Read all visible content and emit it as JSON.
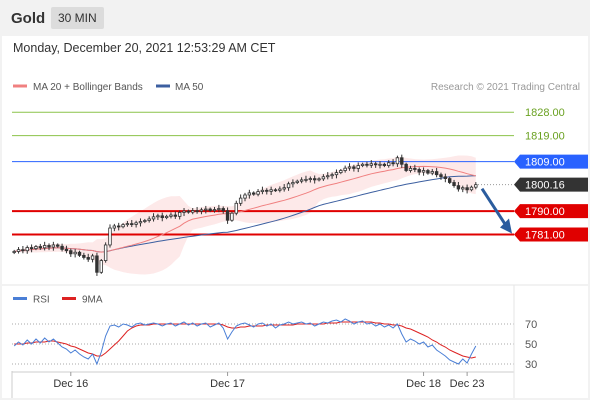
{
  "symbol": "Gold",
  "timeframe": "30 MIN",
  "datetime": "Monday, December 20, 2021 12:53:29 AM CET",
  "colors": {
    "candle_up": "#ffffff",
    "candle_down": "#333333",
    "ma20": "#f08080",
    "ma50": "#3c5fa0",
    "band_fill": "#fde3e3",
    "level_resistance": "#8bc34a",
    "level_pivot": "#2962ff",
    "level_support": "#e00000",
    "price_tag": "#333333",
    "rsi": "#4a7fd6",
    "rsi_ma": "#dd2222",
    "arrow": "#2b5c9e"
  },
  "chart_data": [
    {
      "type": "candlestick",
      "title": "Gold 30 MIN",
      "legend": {
        "position": "top-left",
        "items": [
          {
            "label": "MA 20 + Bollinger Bands",
            "color": "#f08080"
          },
          {
            "label": "MA 50",
            "color": "#3c5fa0"
          }
        ]
      },
      "credit": "Research © 2021 Trading Central",
      "ylim": [
        1762,
        1835
      ],
      "grid": false,
      "x_ticks": [
        "Dec 16",
        "Dec 17",
        "Dec 18",
        "Dec 23"
      ],
      "close": [
        1774.5,
        1775.2,
        1774.8,
        1776.0,
        1775.6,
        1776.4,
        1775.9,
        1776.8,
        1776.2,
        1777.0,
        1776.5,
        1775.3,
        1774.8,
        1773.6,
        1774.2,
        1773.0,
        1772.2,
        1771.5,
        1772.8,
        1766.5,
        1771.0,
        1777.0,
        1783.5,
        1784.3,
        1784.0,
        1784.8,
        1785.2,
        1784.9,
        1785.5,
        1786.0,
        1786.4,
        1787.0,
        1787.8,
        1788.2,
        1787.5,
        1788.0,
        1788.5,
        1788.0,
        1789.5,
        1790.0,
        1789.6,
        1790.2,
        1790.0,
        1790.5,
        1790.8,
        1790.2,
        1790.6,
        1791.0,
        1790.2,
        1786.5,
        1789.2,
        1793.0,
        1795.0,
        1796.2,
        1797.0,
        1796.5,
        1797.5,
        1798.0,
        1797.6,
        1798.2,
        1798.0,
        1798.5,
        1799.0,
        1800.5,
        1801.0,
        1801.5,
        1802.0,
        1802.2,
        1802.5,
        1802.0,
        1802.4,
        1803.2,
        1803.6,
        1804.0,
        1804.8,
        1805.6,
        1806.5,
        1807.0,
        1806.4,
        1807.5,
        1808.0,
        1807.6,
        1808.2,
        1807.8,
        1808.0,
        1807.5,
        1808.6,
        1808.2,
        1810.5,
        1808.0,
        1805.6,
        1806.4,
        1806.0,
        1805.0,
        1805.6,
        1804.6,
        1805.2,
        1804.0,
        1803.2,
        1802.5,
        1801.0,
        1799.8,
        1798.5,
        1799.0,
        1798.2,
        1799.2,
        1800.16
      ],
      "annotations": [
        {
          "label": "1828.00",
          "value": 1828.0,
          "color": "#8bc34a",
          "role": "resistance"
        },
        {
          "label": "1819.00",
          "value": 1819.0,
          "color": "#8bc34a",
          "role": "resistance"
        },
        {
          "label": "1809.00",
          "value": 1809.0,
          "color": "#2962ff",
          "role": "pivot"
        },
        {
          "label": "1800.16",
          "value": 1800.16,
          "color": "#333333",
          "role": "last-price"
        },
        {
          "label": "1790.00",
          "value": 1790.0,
          "color": "#e00000",
          "role": "support"
        },
        {
          "label": "1781.00",
          "value": 1781.0,
          "color": "#e00000",
          "role": "support"
        }
      ],
      "arrow": {
        "from": 1800.16,
        "to": 1781.0,
        "direction": "down"
      }
    },
    {
      "type": "line",
      "title": "RSI",
      "legend": {
        "position": "top-left",
        "items": [
          {
            "label": "RSI",
            "color": "#4a7fd6"
          },
          {
            "label": "9MA",
            "color": "#dd2222"
          }
        ]
      },
      "ylim": [
        22,
        78
      ],
      "levels": [
        70,
        50,
        30
      ],
      "level_labels": [
        "70",
        "50",
        "30"
      ],
      "series": [
        {
          "name": "RSI",
          "values": [
            48,
            52,
            49,
            54,
            50,
            55,
            51,
            56,
            52,
            55,
            51,
            47,
            45,
            41,
            44,
            40,
            37,
            35,
            40,
            30,
            42,
            58,
            68,
            69,
            67,
            70,
            69,
            67,
            70,
            71,
            69,
            70,
            71,
            70,
            68,
            70,
            71,
            68,
            70,
            72,
            69,
            71,
            68,
            70,
            71,
            67,
            69,
            71,
            66,
            55,
            62,
            68,
            70,
            71,
            69,
            67,
            70,
            71,
            68,
            70,
            66,
            69,
            70,
            72,
            70,
            71,
            72,
            70,
            71,
            68,
            70,
            72,
            71,
            73,
            74,
            72,
            75,
            73,
            70,
            72,
            73,
            70,
            71,
            68,
            70,
            67,
            69,
            66,
            70,
            60,
            52,
            55,
            53,
            50,
            52,
            47,
            49,
            44,
            41,
            38,
            34,
            32,
            30,
            35,
            31,
            40,
            48
          ]
        },
        {
          "name": "9MA",
          "values": [
            50,
            50,
            50,
            51,
            51,
            52,
            52,
            52,
            53,
            53,
            52,
            51,
            50,
            48,
            47,
            45,
            43,
            41,
            40,
            38,
            38,
            41,
            45,
            49,
            53,
            58,
            63,
            66,
            68,
            69,
            69,
            69,
            70,
            70,
            70,
            70,
            70,
            70,
            70,
            70,
            70,
            70,
            70,
            70,
            70,
            70,
            70,
            70,
            69,
            67,
            66,
            66,
            67,
            67,
            68,
            68,
            68,
            68,
            69,
            69,
            69,
            69,
            69,
            69,
            69,
            70,
            70,
            70,
            70,
            70,
            70,
            70,
            71,
            71,
            71,
            72,
            72,
            72,
            72,
            72,
            72,
            72,
            72,
            71,
            71,
            70,
            70,
            69,
            69,
            68,
            66,
            65,
            63,
            61,
            59,
            57,
            54,
            52,
            49,
            47,
            44,
            42,
            40,
            38,
            37,
            36,
            37
          ]
        }
      ]
    }
  ]
}
